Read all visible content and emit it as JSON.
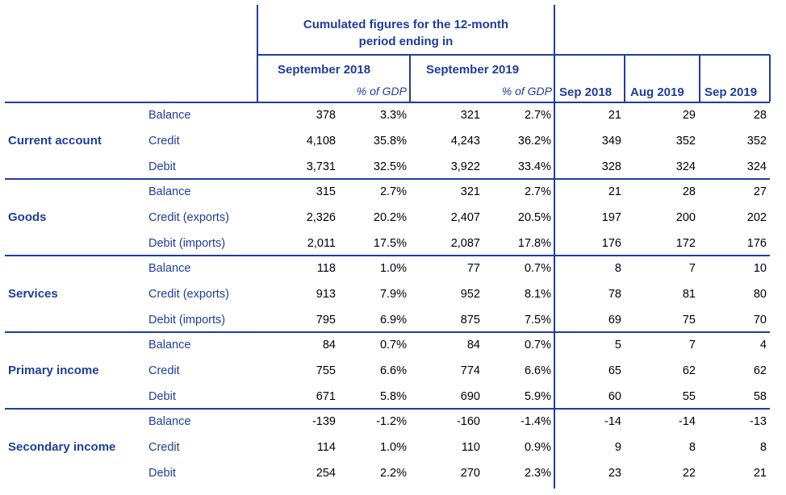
{
  "header": {
    "title_line1": "Cumulated figures for the 12-month",
    "title_line2": "period ending in",
    "period_1": "September 2018",
    "period_2": "September 2019",
    "pct_label": "% of GDP",
    "month_cols": [
      "Sep 2018",
      "Aug 2019",
      "Sep 2019"
    ]
  },
  "sections": [
    {
      "name": "Current account",
      "rows": [
        {
          "label": "Balance",
          "v1": "378",
          "p1": "3.3%",
          "v2": "321",
          "p2": "2.7%",
          "m": [
            "21",
            "29",
            "28"
          ]
        },
        {
          "label": "Credit",
          "v1": "4,108",
          "p1": "35.8%",
          "v2": "4,243",
          "p2": "36.2%",
          "m": [
            "349",
            "352",
            "352"
          ]
        },
        {
          "label": "Debit",
          "v1": "3,731",
          "p1": "32.5%",
          "v2": "3,922",
          "p2": "33.4%",
          "m": [
            "328",
            "324",
            "324"
          ]
        }
      ]
    },
    {
      "name": "Goods",
      "rows": [
        {
          "label": "Balance",
          "v1": "315",
          "p1": "2.7%",
          "v2": "321",
          "p2": "2.7%",
          "m": [
            "21",
            "28",
            "27"
          ]
        },
        {
          "label": "Credit (exports)",
          "v1": "2,326",
          "p1": "20.2%",
          "v2": "2,407",
          "p2": "20.5%",
          "m": [
            "197",
            "200",
            "202"
          ]
        },
        {
          "label": "Debit (imports)",
          "v1": "2,011",
          "p1": "17.5%",
          "v2": "2,087",
          "p2": "17.8%",
          "m": [
            "176",
            "172",
            "176"
          ]
        }
      ]
    },
    {
      "name": "Services",
      "rows": [
        {
          "label": "Balance",
          "v1": "118",
          "p1": "1.0%",
          "v2": "77",
          "p2": "0.7%",
          "m": [
            "8",
            "7",
            "10"
          ]
        },
        {
          "label": "Credit (exports)",
          "v1": "913",
          "p1": "7.9%",
          "v2": "952",
          "p2": "8.1%",
          "m": [
            "78",
            "81",
            "80"
          ]
        },
        {
          "label": "Debit (imports)",
          "v1": "795",
          "p1": "6.9%",
          "v2": "875",
          "p2": "7.5%",
          "m": [
            "69",
            "75",
            "70"
          ]
        }
      ]
    },
    {
      "name": "Primary income",
      "rows": [
        {
          "label": "Balance",
          "v1": "84",
          "p1": "0.7%",
          "v2": "84",
          "p2": "0.7%",
          "m": [
            "5",
            "7",
            "4"
          ]
        },
        {
          "label": "Credit",
          "v1": "755",
          "p1": "6.6%",
          "v2": "774",
          "p2": "6.6%",
          "m": [
            "65",
            "62",
            "62"
          ]
        },
        {
          "label": "Debit",
          "v1": "671",
          "p1": "5.8%",
          "v2": "690",
          "p2": "5.9%",
          "m": [
            "60",
            "55",
            "58"
          ]
        }
      ]
    },
    {
      "name": "Secondary income",
      "rows": [
        {
          "label": "Balance",
          "v1": "-139",
          "p1": "-1.2%",
          "v2": "-160",
          "p2": "-1.4%",
          "m": [
            "-14",
            "-14",
            "-13"
          ]
        },
        {
          "label": "Credit",
          "v1": "114",
          "p1": "1.0%",
          "v2": "110",
          "p2": "0.9%",
          "m": [
            "9",
            "8",
            "8"
          ]
        },
        {
          "label": "Debit",
          "v1": "254",
          "p1": "2.2%",
          "v2": "270",
          "p2": "2.3%",
          "m": [
            "23",
            "22",
            "21"
          ]
        }
      ]
    }
  ],
  "colors": {
    "accent": "#1f3d9c",
    "text": "#000000"
  }
}
